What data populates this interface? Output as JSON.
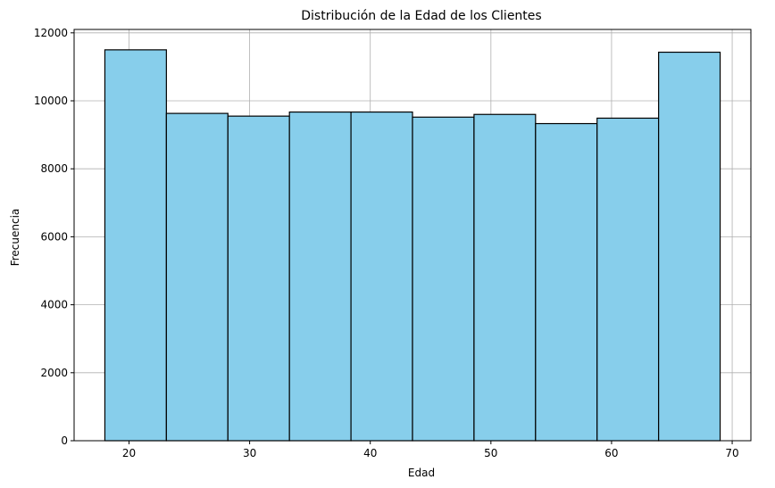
{
  "chart_data": {
    "type": "bar",
    "subtype": "histogram",
    "title": "Distribución de la Edad de los Clientes",
    "xlabel": "Edad",
    "ylabel": "Frecuencia",
    "xlim": [
      15.45,
      71.55
    ],
    "ylim": [
      0,
      12100
    ],
    "bin_edges": [
      18,
      23.1,
      28.2,
      33.3,
      38.4,
      43.5,
      48.6,
      53.7,
      58.8,
      63.9,
      69
    ],
    "values": [
      11500,
      9630,
      9550,
      9670,
      9670,
      9520,
      9600,
      9330,
      9490,
      11430
    ],
    "x_ticks": [
      20,
      30,
      40,
      50,
      60,
      70
    ],
    "y_ticks": [
      0,
      2000,
      4000,
      6000,
      8000,
      10000,
      12000
    ],
    "grid": true,
    "colors": {
      "bar_fill": "#87ceeb",
      "bar_edge": "#000000",
      "grid": "#b0b0b0",
      "axis": "#000000"
    }
  }
}
